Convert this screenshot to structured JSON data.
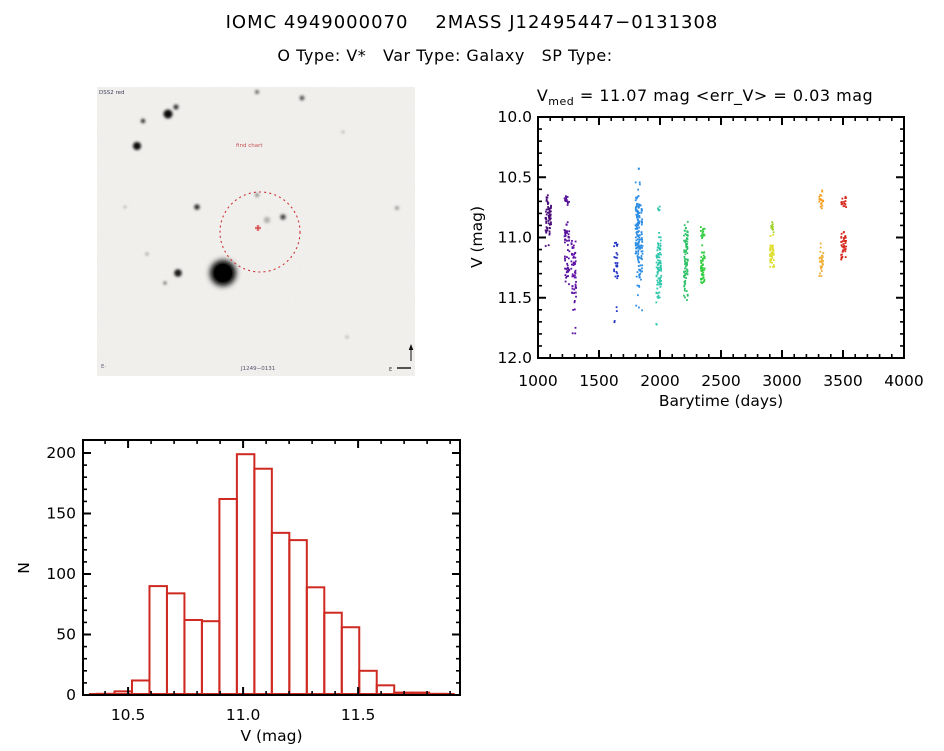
{
  "header": {
    "title": "IOMC 4949000070    2MASS J12495447−0131308",
    "subtitle": "O Type: V*   Var Type: Galaxy   SP Type:"
  },
  "finder": {
    "top_left_label": "DSS2 red",
    "center_red_label": "find chart",
    "bottom_center_label": "J1249−0131",
    "bottom_left_label": "E·",
    "compass_east_label": "E"
  },
  "chart_data": [
    {
      "type": "scatter",
      "title": "Vmed = 11.07 mag <err_V> = 0.03 mag",
      "title_v": "V",
      "title_sub": "med",
      "title_rest": " = 11.07 mag <err_V> = 0.03 mag",
      "xlabel": "Barytime (days)",
      "ylabel": "V (mag)",
      "xlim": [
        1000,
        4000
      ],
      "ylim": [
        10.0,
        12.0
      ],
      "y_axis_inverted": true,
      "grid": false,
      "xticks": [
        "1000",
        "1500",
        "2000",
        "2500",
        "3000",
        "3500",
        "4000"
      ],
      "yticks": [
        "10.0",
        "10.5",
        "11.0",
        "11.5",
        "12.0"
      ],
      "x_minor_step": 100,
      "y_minor_step": 0.1,
      "clusters": [
        {
          "x": 1085,
          "color": "#4a0d78",
          "jitter": 6,
          "segments": [
            [
              10.61,
              11.02,
              65
            ],
            [
              11.05,
              11.08,
              2
            ]
          ]
        },
        {
          "x": 1237,
          "color": "#56109b",
          "jitter": 5,
          "segments": [
            [
              10.64,
              10.74,
              14
            ],
            [
              10.84,
              11.08,
              30
            ],
            [
              11.08,
              11.42,
              26
            ]
          ]
        },
        {
          "x": 1292,
          "color": "#5d11a6",
          "jitter": 5,
          "segments": [
            [
              10.92,
              11.63,
              55
            ],
            [
              11.72,
              11.8,
              3
            ]
          ]
        },
        {
          "x": 1640,
          "color": "#2636c4",
          "jitter": 4,
          "segments": [
            [
              10.9,
              11.43,
              26
            ],
            [
              11.55,
              11.62,
              2
            ],
            [
              11.68,
              11.72,
              2
            ]
          ]
        },
        {
          "x": 1828,
          "color": "#2e8ee4",
          "jitter": 7,
          "segments": [
            [
              10.4,
              10.46,
              2
            ],
            [
              10.48,
              11.5,
              160
            ],
            [
              11.56,
              11.62,
              3
            ]
          ]
        },
        {
          "x": 1990,
          "color": "#31c7ad",
          "jitter": 5,
          "segments": [
            [
              10.72,
              10.79,
              6
            ],
            [
              10.88,
              11.62,
              85
            ],
            [
              11.69,
              11.74,
              2
            ]
          ]
        },
        {
          "x": 2212,
          "color": "#2fc167",
          "jitter": 4,
          "segments": [
            [
              10.81,
              11.53,
              85
            ]
          ]
        },
        {
          "x": 2350,
          "color": "#31cd3e",
          "jitter": 4,
          "segments": [
            [
              10.9,
              11.01,
              14
            ],
            [
              11.04,
              11.46,
              48
            ]
          ]
        },
        {
          "x": 2918,
          "color": "#dede30",
          "jitter": 4,
          "segments": [
            [
              10.86,
              10.97,
              12,
              "#9ed32e"
            ],
            [
              10.97,
              11.32,
              45
            ]
          ]
        },
        {
          "x": 3322,
          "color": "#f59d1d",
          "jitter": 4,
          "segments": [
            [
              10.6,
              10.78,
              18
            ],
            [
              11.04,
              11.31,
              26,
              "#efae35"
            ],
            [
              11.31,
              11.33,
              2,
              "#efae35"
            ]
          ]
        },
        {
          "x": 3505,
          "color": "#d6281e",
          "jitter": 5,
          "segments": [
            [
              10.64,
              10.78,
              16
            ],
            [
              10.9,
              11.25,
              42
            ]
          ]
        }
      ]
    },
    {
      "type": "histogram",
      "xlabel": "V (mag)",
      "ylabel": "N",
      "xlim": [
        10.304,
        11.943
      ],
      "ylim": [
        0,
        211
      ],
      "grid": false,
      "xticks": [
        "10.5",
        "11.0",
        "11.5"
      ],
      "yticks": [
        "0",
        "50",
        "100",
        "150",
        "200"
      ],
      "x_minor_step": 0.1,
      "y_minor_step": 10,
      "bin_start": 10.365,
      "bin_width": 0.076,
      "counts": [
        1,
        3,
        12,
        90,
        84,
        62,
        61,
        162,
        199,
        187,
        134,
        128,
        89,
        68,
        56,
        20,
        8,
        2,
        2,
        1
      ],
      "baseline_extent": [
        10.33,
        11.92
      ],
      "color": "#cf2a21"
    }
  ]
}
